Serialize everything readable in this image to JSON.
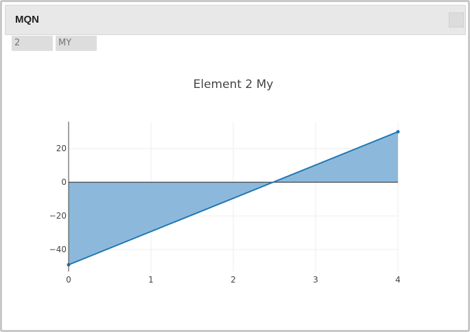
{
  "window": {
    "title": "MQN"
  },
  "controls": {
    "number_value": "2",
    "code_value": "MY"
  },
  "colors": {
    "line": "#1f77b4",
    "fill": "#7fb1d7",
    "grid": "#eeeeee",
    "axis": "#444444",
    "zero_line": "#222222"
  },
  "chart_data": {
    "type": "area",
    "title": "Element 2 My",
    "x": [
      0,
      4
    ],
    "y": [
      -49,
      30
    ],
    "fill": "tozeroy",
    "xlim": [
      0,
      4
    ],
    "ylim": [
      -53,
      36
    ],
    "xticks": [
      0,
      1,
      2,
      3,
      4
    ],
    "yticks": [
      -40,
      -20,
      0,
      20
    ],
    "grid": true,
    "xlabel": "",
    "ylabel": ""
  }
}
